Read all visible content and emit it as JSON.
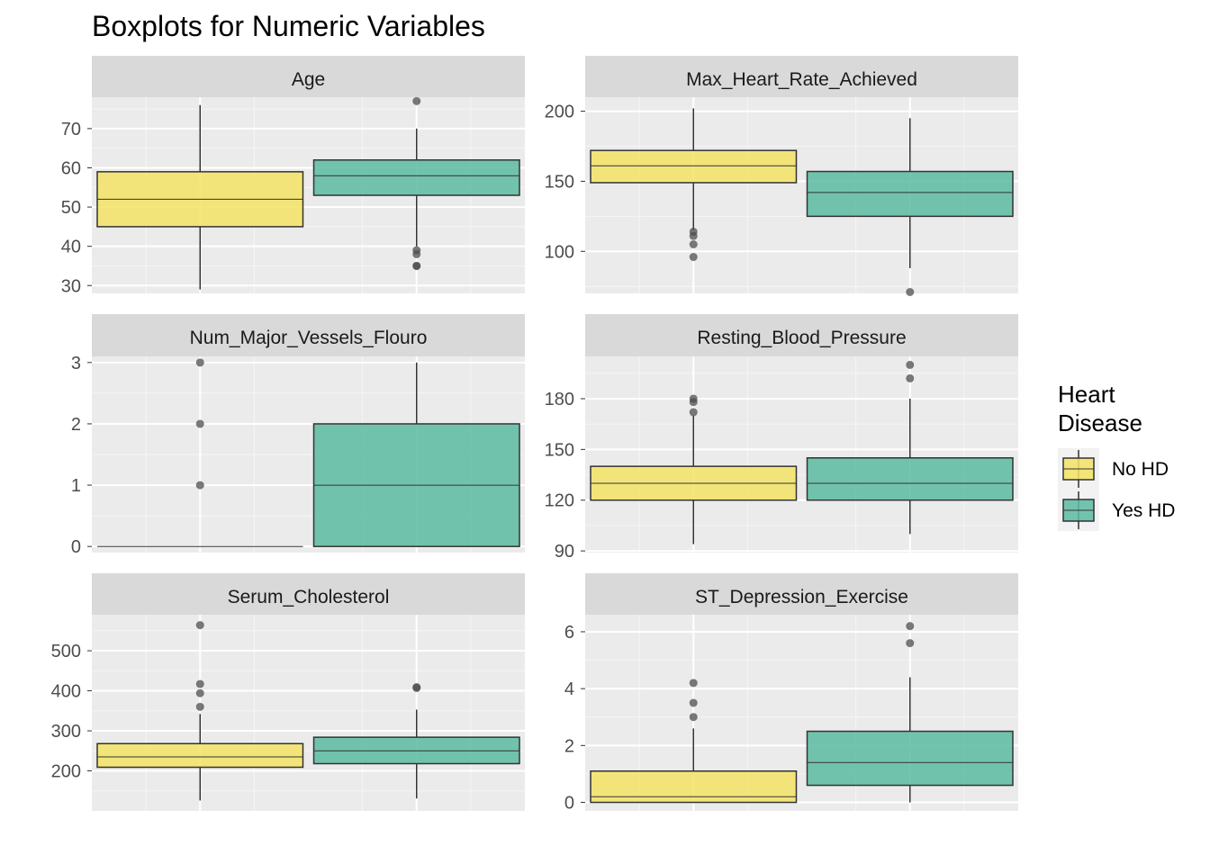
{
  "title": "Boxplots for Numeric Variables",
  "colors": {
    "no_hd": "#F3E364",
    "yes_hd": "#5CBBA1",
    "panel_bg": "#EBEBEB",
    "strip_bg": "#D9D9D9",
    "grid_major": "#FFFFFF",
    "outlier": "#4D4D4D",
    "outline": "#333333"
  },
  "legend": {
    "title_line1": "Heart",
    "title_line2": "Disease",
    "items": [
      {
        "label": "No HD",
        "color": "#F3E364"
      },
      {
        "label": "Yes HD",
        "color": "#5CBBA1"
      }
    ]
  },
  "chart_data": {
    "type": "boxplot",
    "series": [
      "No HD",
      "Yes HD"
    ],
    "x_axis": "none",
    "panels": [
      {
        "name": "Age",
        "ylim": [
          28,
          78
        ],
        "yticks": [
          30,
          40,
          50,
          60,
          70
        ],
        "boxes": [
          {
            "series": "No HD",
            "min": 29,
            "q1": 45,
            "median": 52,
            "q3": 59,
            "max": 76,
            "outliers": []
          },
          {
            "series": "Yes HD",
            "min": 40,
            "q1": 53,
            "median": 58,
            "q3": 62,
            "max": 70,
            "outliers": [
              77,
              39,
              38,
              35,
              35
            ]
          }
        ]
      },
      {
        "name": "Max_Heart_Rate_Achieved",
        "ylim": [
          70,
          210
        ],
        "yticks": [
          100,
          150,
          200
        ],
        "boxes": [
          {
            "series": "No HD",
            "min": 115,
            "q1": 149,
            "median": 161,
            "q3": 172,
            "max": 202,
            "outliers": [
              114,
              111,
              105,
              96
            ]
          },
          {
            "series": "Yes HD",
            "min": 88,
            "q1": 125,
            "median": 142,
            "q3": 157,
            "max": 195,
            "outliers": [
              71
            ]
          }
        ]
      },
      {
        "name": "Num_Major_Vessels_Flouro",
        "ylim": [
          -0.1,
          3.1
        ],
        "yticks": [
          0,
          1,
          2,
          3
        ],
        "boxes": [
          {
            "series": "No HD",
            "min": 0,
            "q1": 0,
            "median": 0,
            "q3": 0,
            "max": 0,
            "outliers": [
              3,
              2,
              1
            ]
          },
          {
            "series": "Yes HD",
            "min": 0,
            "q1": 0,
            "median": 1,
            "q3": 2,
            "max": 3,
            "outliers": []
          }
        ]
      },
      {
        "name": "Resting_Blood_Pressure",
        "ylim": [
          89,
          205
        ],
        "yticks": [
          90,
          120,
          150,
          180
        ],
        "boxes": [
          {
            "series": "No HD",
            "min": 94,
            "q1": 120,
            "median": 130,
            "q3": 140,
            "max": 170,
            "outliers": [
              180,
              178,
              172
            ]
          },
          {
            "series": "Yes HD",
            "min": 100,
            "q1": 120,
            "median": 130,
            "q3": 145,
            "max": 180,
            "outliers": [
              200,
              192
            ]
          }
        ]
      },
      {
        "name": "Serum_Cholesterol",
        "ylim": [
          100,
          590
        ],
        "yticks": [
          200,
          300,
          400,
          500
        ],
        "boxes": [
          {
            "series": "No HD",
            "min": 126,
            "q1": 209,
            "median": 235,
            "q3": 268,
            "max": 342,
            "outliers": [
              564,
              417,
              394,
              360
            ]
          },
          {
            "series": "Yes HD",
            "min": 131,
            "q1": 218,
            "median": 250,
            "q3": 284,
            "max": 353,
            "outliers": [
              409,
              407
            ]
          }
        ]
      },
      {
        "name": "ST_Depression_Exercise",
        "ylim": [
          -0.3,
          6.6
        ],
        "yticks": [
          0,
          2,
          4,
          6
        ],
        "boxes": [
          {
            "series": "No HD",
            "min": 0,
            "q1": 0,
            "median": 0.2,
            "q3": 1.1,
            "max": 2.6,
            "outliers": [
              4.2,
              3.5,
              3.0
            ]
          },
          {
            "series": "Yes HD",
            "min": 0,
            "q1": 0.6,
            "median": 1.4,
            "q3": 2.5,
            "max": 4.4,
            "outliers": [
              6.2,
              5.6
            ]
          }
        ]
      }
    ]
  }
}
